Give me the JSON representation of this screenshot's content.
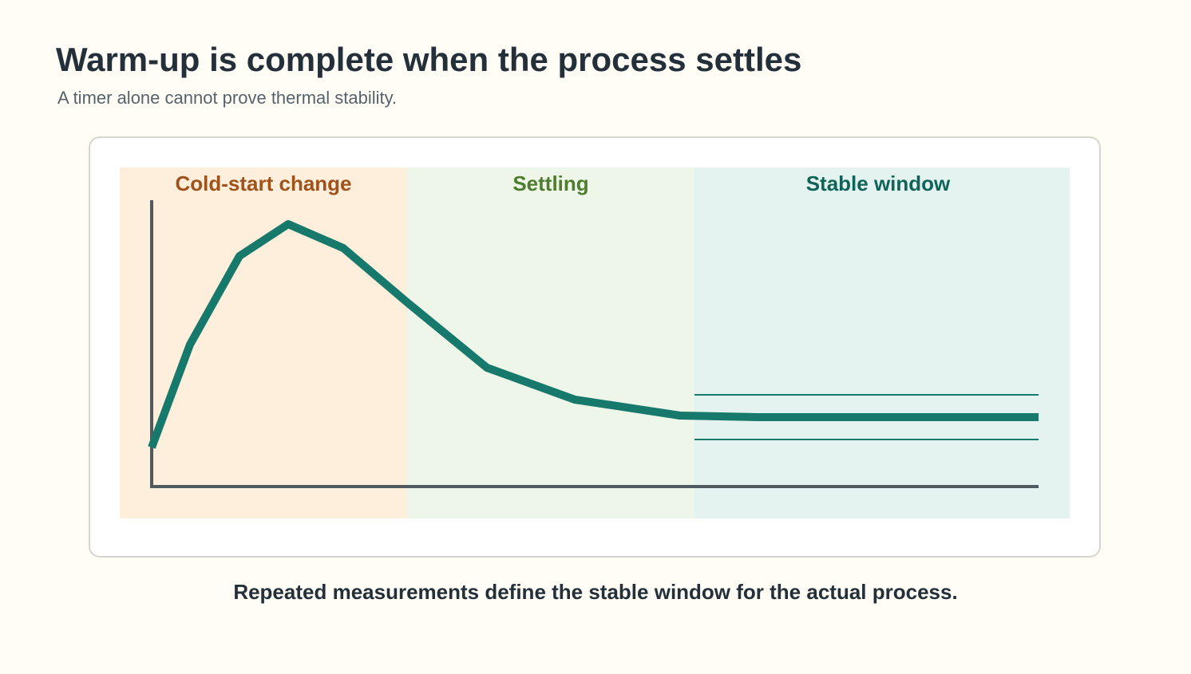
{
  "header": {
    "title": "Warm-up is complete when the process settles",
    "subtitle": "A timer alone cannot prove thermal stability."
  },
  "zones": [
    {
      "label": "Cold-start change",
      "fill": "#fdefdc",
      "text_color": "#a0521a"
    },
    {
      "label": "Settling",
      "fill": "#eef6ea",
      "text_color": "#4e7d2d"
    },
    {
      "label": "Stable window",
      "fill": "#e4f3ef",
      "text_color": "#0f6458"
    }
  ],
  "colors": {
    "curve": "#16796b",
    "band": "#16796b",
    "axis": "#4f5a60"
  },
  "caption": "Repeated measurements define the stable window for the actual process."
}
